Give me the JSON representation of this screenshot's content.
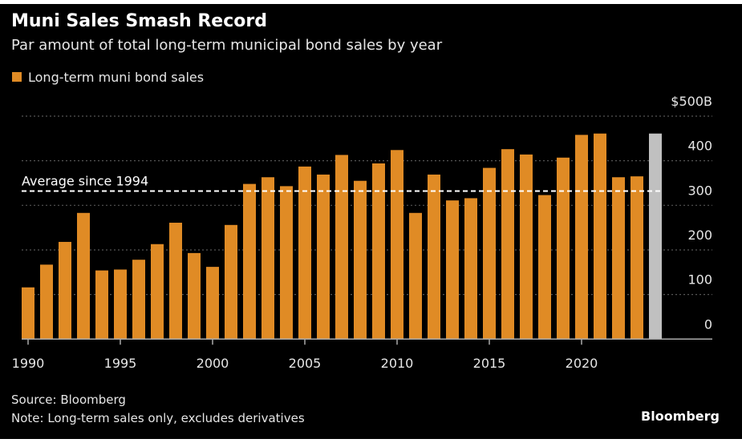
{
  "chart_data": {
    "type": "bar",
    "title": "Muni Sales Smash Record",
    "subtitle": "Par amount of total long-term municipal bond sales by year",
    "legend": [
      {
        "name": "Long-term muni bond sales",
        "color": "#e08b25"
      }
    ],
    "legend_placement": "top-left",
    "x": [
      1990,
      1991,
      1992,
      1993,
      1994,
      1995,
      1996,
      1997,
      1998,
      1999,
      2000,
      2001,
      2002,
      2003,
      2004,
      2005,
      2006,
      2007,
      2008,
      2009,
      2010,
      2011,
      2012,
      2013,
      2014,
      2015,
      2016,
      2017,
      2018,
      2019,
      2020,
      2021,
      2022,
      2023,
      2024
    ],
    "values": [
      116,
      167,
      218,
      283,
      154,
      156,
      178,
      213,
      261,
      193,
      162,
      256,
      348,
      363,
      343,
      387,
      369,
      413,
      355,
      394,
      424,
      283,
      369,
      311,
      316,
      384,
      426,
      414,
      323,
      407,
      458,
      461,
      363,
      365,
      461
    ],
    "highlight_index": 34,
    "colors": {
      "bar": "#e08b25",
      "highlight": "#c0c0c0",
      "background": "#000000",
      "text": "#e6e6e6"
    },
    "x_ticks": [
      1990,
      1995,
      2000,
      2005,
      2010,
      2015,
      2020
    ],
    "x_tick_labels": [
      "1990",
      "1995",
      "2000",
      "2005",
      "2010",
      "2015",
      "2020"
    ],
    "y_ticks": [
      0,
      100,
      200,
      300,
      400,
      500
    ],
    "y_tick_labels": [
      "0",
      "100",
      "200",
      "300",
      "400",
      "$500B"
    ],
    "ylim": [
      0,
      500
    ],
    "y_axis_side": "right",
    "grid": true,
    "reference_line": {
      "label": "Average since 1994",
      "value": 332
    },
    "source": "Source: Bloomberg",
    "note": "Note: Long-term sales only, excludes derivatives",
    "brand": "Bloomberg"
  }
}
